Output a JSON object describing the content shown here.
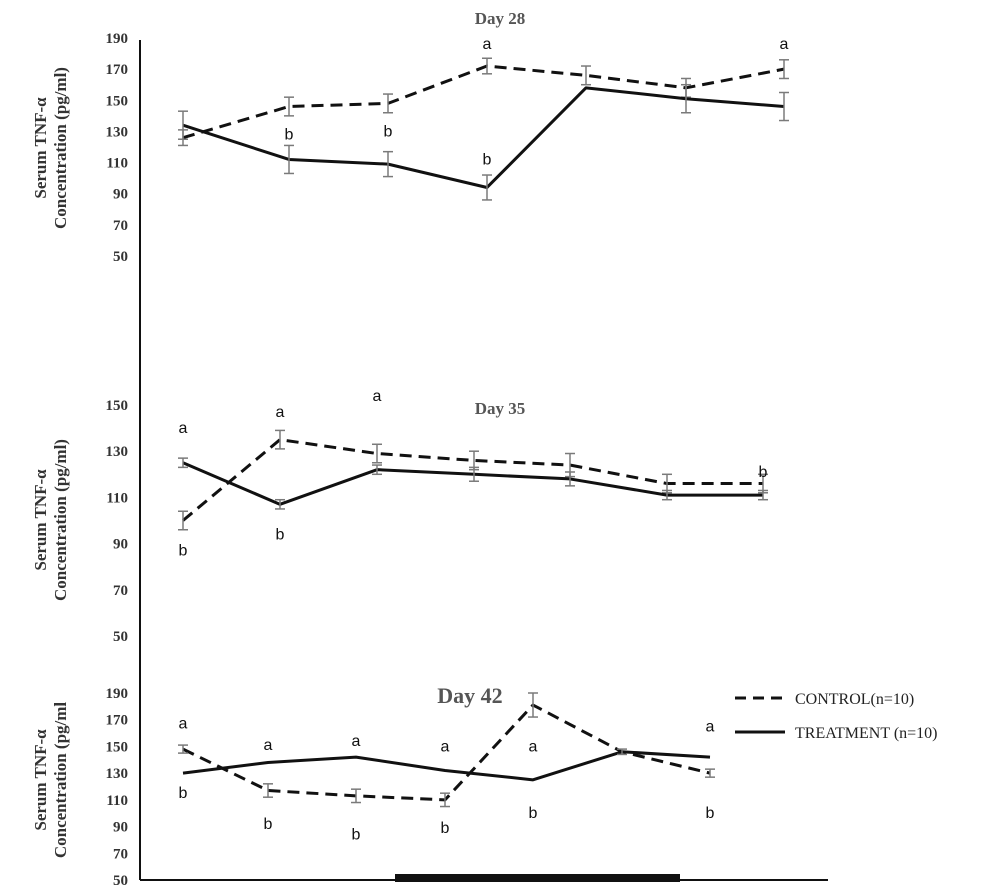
{
  "figure": {
    "legend": {
      "control_label": "CONTROL(n=10)",
      "treatment_label": "TREATMENT (n=10)"
    },
    "colors": {
      "line": "#111111",
      "errorbar": "#7a7a7a",
      "text": "#333333",
      "title": "#555555"
    }
  },
  "chart_data": [
    {
      "type": "line",
      "title": "Day 28",
      "ylabel_lines": [
        "Serum TNF-α",
        "Concentration (pg/ml)"
      ],
      "ylim": [
        50,
        190
      ],
      "yticks": [
        50,
        70,
        90,
        110,
        130,
        150,
        170,
        190
      ],
      "x": [
        1,
        2,
        3,
        4,
        5,
        6,
        7
      ],
      "series": [
        {
          "name": "CONTROL(n=10)",
          "style": "dashed",
          "values": [
            126,
            146,
            148,
            172,
            166,
            158,
            170
          ],
          "errors": [
            5,
            6,
            6,
            5,
            6,
            6,
            6
          ]
        },
        {
          "name": "TREATMENT (n=10)",
          "style": "solid",
          "values": [
            134,
            112,
            109,
            94,
            158,
            151,
            146
          ],
          "errors": [
            9,
            9,
            8,
            8,
            0,
            9,
            9
          ]
        }
      ],
      "annotations": [
        {
          "text": "b",
          "x": 2,
          "y": 128
        },
        {
          "text": "b",
          "x": 3,
          "y": 130
        },
        {
          "text": "a",
          "x": 4,
          "y": 186
        },
        {
          "text": "b",
          "x": 4,
          "y": 112
        },
        {
          "text": "a",
          "x": 7,
          "y": 186
        }
      ]
    },
    {
      "type": "line",
      "title": "Day  35",
      "ylabel_lines": [
        "Serum TNF-α",
        "Concentration (pg/ml)"
      ],
      "ylim": [
        50,
        150
      ],
      "yticks": [
        50,
        70,
        90,
        110,
        130,
        150
      ],
      "x": [
        1,
        2,
        3,
        4,
        5,
        6,
        7
      ],
      "series": [
        {
          "name": "CONTROL(n=10)",
          "style": "dashed",
          "values": [
            100,
            135,
            129,
            126,
            124,
            116,
            116
          ],
          "errors": [
            4,
            4,
            4,
            4,
            5,
            4,
            4
          ]
        },
        {
          "name": "TREATMENT (n=10)",
          "style": "solid",
          "values": [
            125,
            107,
            122,
            120,
            118,
            111,
            111
          ],
          "errors": [
            2,
            2,
            2,
            3,
            3,
            2,
            2
          ]
        }
      ],
      "annotations": [
        {
          "text": "a",
          "x": 1,
          "y": 140
        },
        {
          "text": "b",
          "x": 1,
          "y": 87
        },
        {
          "text": "a",
          "x": 2,
          "y": 147
        },
        {
          "text": "b",
          "x": 2,
          "y": 94
        },
        {
          "text": "a",
          "x": 3,
          "y": 154
        },
        {
          "text": "b",
          "x": 7,
          "y": 121
        }
      ]
    },
    {
      "type": "line",
      "title": "Day 42",
      "ylabel_lines": [
        "Serum TNF-α",
        "Concentration (pg/ml"
      ],
      "ylim": [
        50,
        190
      ],
      "yticks": [
        50,
        70,
        90,
        110,
        130,
        150,
        170,
        190
      ],
      "x": [
        1,
        2,
        3,
        4,
        5,
        6,
        7
      ],
      "series": [
        {
          "name": "CONTROL(n=10)",
          "style": "dashed",
          "values": [
            148,
            117,
            113,
            110,
            181,
            146,
            130
          ],
          "errors": [
            3,
            5,
            5,
            5,
            9,
            0,
            3
          ]
        },
        {
          "name": "TREATMENT (n=10)",
          "style": "solid",
          "values": [
            130,
            138,
            142,
            132,
            125,
            146,
            142
          ],
          "errors": [
            0,
            0,
            0,
            0,
            0,
            2,
            0
          ]
        }
      ],
      "annotations": [
        {
          "text": "a",
          "x": 1,
          "y": 167
        },
        {
          "text": "b",
          "x": 1,
          "y": 115
        },
        {
          "text": "a",
          "x": 2,
          "y": 151
        },
        {
          "text": "b",
          "x": 2,
          "y": 92
        },
        {
          "text": "a",
          "x": 3,
          "y": 154
        },
        {
          "text": "b",
          "x": 3,
          "y": 84
        },
        {
          "text": "a",
          "x": 4,
          "y": 150
        },
        {
          "text": "b",
          "x": 4,
          "y": 89
        },
        {
          "text": "a",
          "x": 5,
          "y": 150
        },
        {
          "text": "b",
          "x": 5,
          "y": 100
        },
        {
          "text": "a",
          "x": 7,
          "y": 165
        },
        {
          "text": "b",
          "x": 7,
          "y": 100
        }
      ]
    }
  ]
}
